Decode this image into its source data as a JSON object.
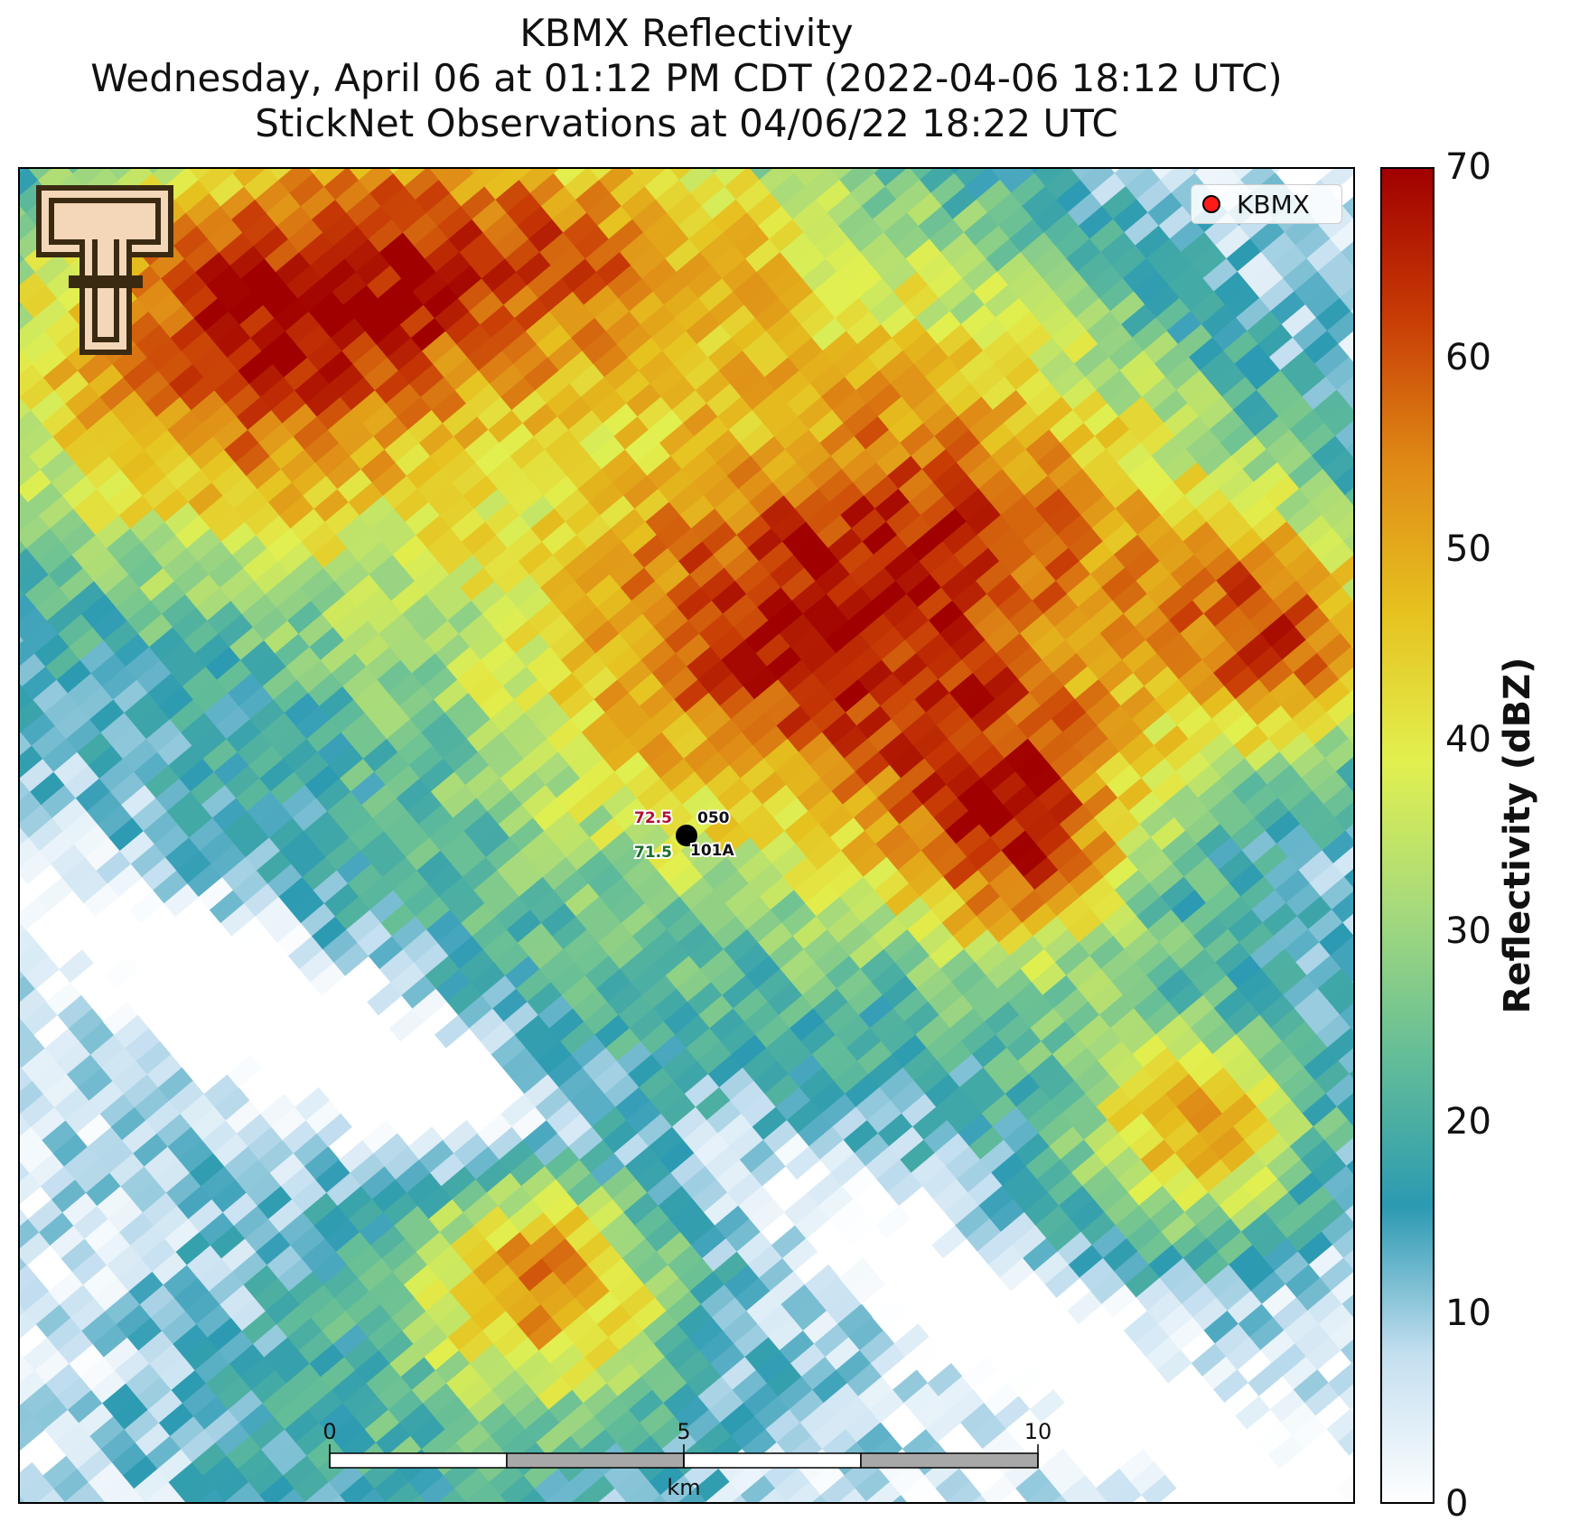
{
  "title": {
    "line1": "KBMX Reflectivity",
    "line2": "Wednesday, April 06 at 01:12 PM CDT (2022-04-06 18:12 UTC)",
    "line3": "StickNet Observations at 04/06/22 18:22 UTC"
  },
  "legend": {
    "label": "KBMX",
    "marker_color": "#ff1a1a"
  },
  "colorbar": {
    "label": "Reflectivity (dBZ)",
    "ticks": [
      "0",
      "10",
      "20",
      "30",
      "40",
      "50",
      "60",
      "70"
    ],
    "vmin": 0,
    "vmax": 70,
    "colors": [
      "#ffffff",
      "#c4dff0",
      "#2b9ab2",
      "#63bd98",
      "#a6da7c",
      "#e2f04f",
      "#e6c21f",
      "#df8a16",
      "#c83b05",
      "#a00000"
    ]
  },
  "station": {
    "temp": "72.5",
    "dewpoint": "71.5",
    "pressure": "050",
    "id": "101A",
    "temp_color": "#b01030",
    "dewpoint_color": "#1a6e2a"
  },
  "scalebar": {
    "ticks": [
      "0",
      "5",
      "10"
    ],
    "unit": "km"
  },
  "logo": {
    "name": "Texas Tech Double T logo"
  }
}
